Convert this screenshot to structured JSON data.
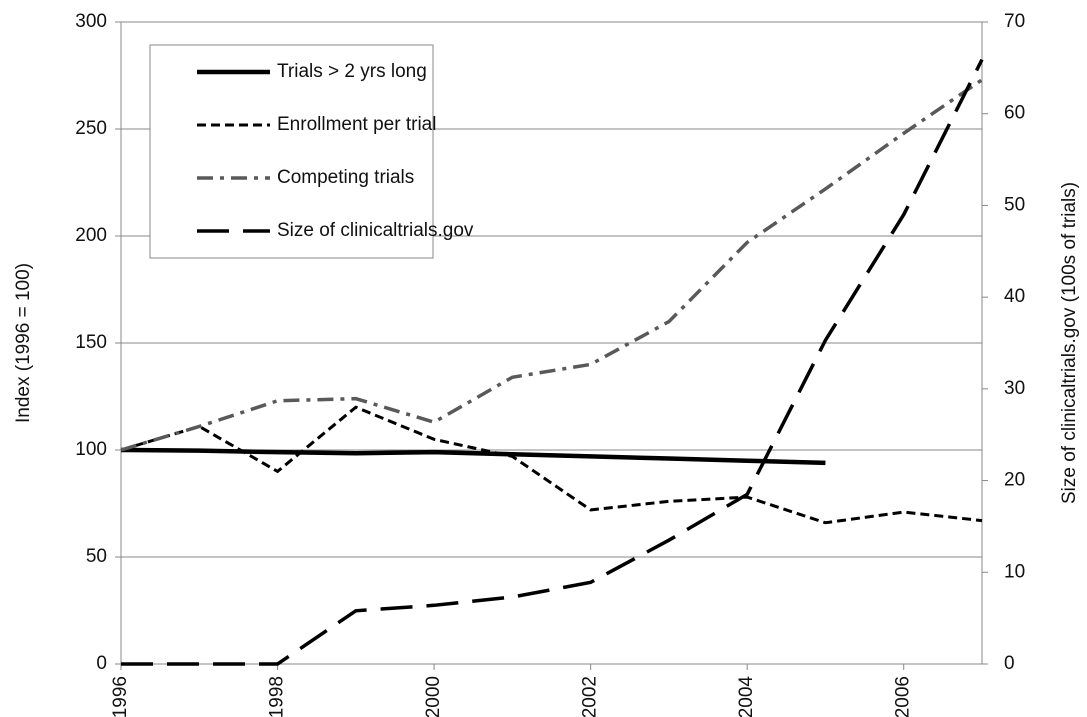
{
  "chart_data": {
    "type": "line",
    "x": [
      1996,
      1997,
      1998,
      1999,
      2000,
      2001,
      2002,
      2003,
      2004,
      2005,
      2006,
      2007
    ],
    "xlim": [
      1996,
      2007
    ],
    "xticks": [
      1996,
      1998,
      2000,
      2002,
      2004,
      2006
    ],
    "ylim": [
      0,
      300
    ],
    "yticks": [
      0,
      50,
      100,
      150,
      200,
      250,
      300
    ],
    "y2lim": [
      0,
      70
    ],
    "y2ticks": [
      0,
      10,
      20,
      30,
      40,
      50,
      60,
      70
    ],
    "y_label": "Index (1996 = 100)",
    "y2_label": "Size of clinicaltrials.gov (100s of trials)",
    "grid": true,
    "series": [
      {
        "name": "Trials > 2 yrs long",
        "color": "#000000",
        "style": "solid",
        "values": [
          100,
          99.7,
          99,
          98.5,
          99,
          98,
          97,
          96,
          95,
          94,
          null,
          null
        ]
      },
      {
        "name": "Enrollment per trial",
        "color": "#000000",
        "style": "dash",
        "values": [
          100,
          111,
          90,
          120,
          105,
          97,
          72,
          76,
          78,
          66,
          71,
          67
        ]
      },
      {
        "name": "Competing trials",
        "color": "#595959",
        "style": "dashdot",
        "values": [
          100,
          111,
          123,
          124,
          113,
          134,
          140,
          160,
          197,
          222,
          248,
          273
        ]
      },
      {
        "name": "Size of clinicaltrials.gov",
        "color": "#000000",
        "style": "longdash",
        "axis": "y2",
        "values": [
          0,
          0,
          0,
          5.8,
          6.4,
          7.3,
          8.9,
          13.5,
          18.5,
          35.3,
          49,
          65.9
        ]
      }
    ]
  }
}
